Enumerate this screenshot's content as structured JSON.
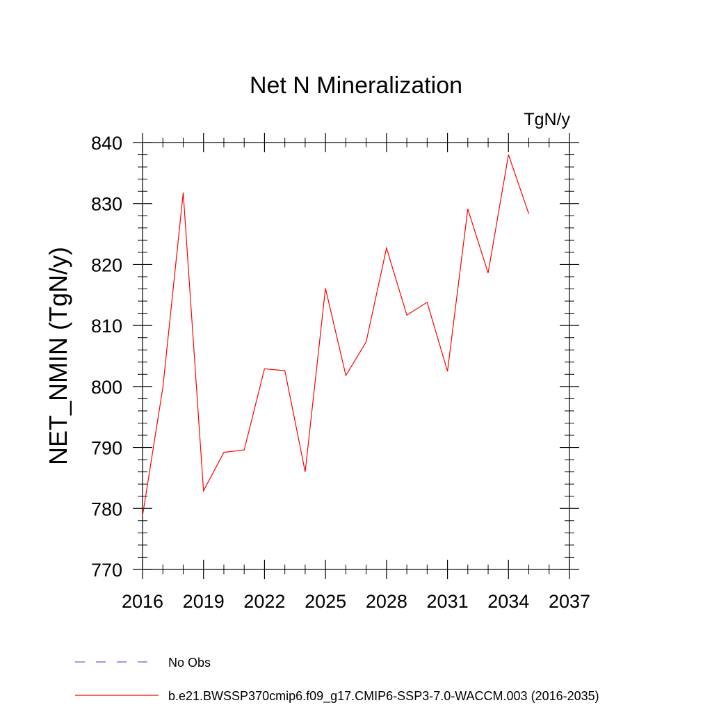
{
  "chart_data": {
    "type": "line",
    "title": "Net N Mineralization",
    "units": "TgN/y",
    "ylabel": "NET_NMIN  (TgN/y)",
    "xlim": [
      2016,
      2037
    ],
    "ylim": [
      770,
      840
    ],
    "xticks": [
      2016,
      2019,
      2022,
      2025,
      2028,
      2031,
      2034,
      2037
    ],
    "xtick_labels": [
      "2016",
      "2019",
      "2022",
      "2025",
      "2028",
      "2031",
      "2034",
      "2037"
    ],
    "yticks": [
      770,
      780,
      790,
      800,
      810,
      820,
      830,
      840
    ],
    "ytick_labels": [
      "770",
      "780",
      "790",
      "800",
      "810",
      "820",
      "830",
      "840"
    ],
    "grid": false,
    "series": [
      {
        "name": "b.e21.BWSSP370cmip6.f09_g17.CMIP6-SSP3-7.0-WACCM.003 (2016-2035)",
        "color": "#ff0000",
        "x": [
          2016,
          2017,
          2018,
          2019,
          2020,
          2021,
          2022,
          2023,
          2024,
          2025,
          2026,
          2027,
          2028,
          2029,
          2030,
          2031,
          2032,
          2033,
          2034,
          2035
        ],
        "y": [
          778.8,
          799.8,
          831.8,
          782.9,
          789.2,
          789.6,
          802.9,
          802.6,
          786.0,
          816.1,
          801.8,
          807.3,
          822.7,
          811.7,
          813.8,
          802.5,
          829.1,
          818.6,
          838.0,
          828.3
        ]
      }
    ],
    "legend": {
      "placement": "bottom",
      "entries": [
        {
          "label": "No Obs",
          "color": "#6a5acd",
          "style": "dashed"
        },
        {
          "label": "b.e21.BWSSP370cmip6.f09_g17.CMIP6-SSP3-7.0-WACCM.003 (2016-2035)",
          "color": "#ff0000",
          "style": "solid"
        }
      ]
    }
  }
}
